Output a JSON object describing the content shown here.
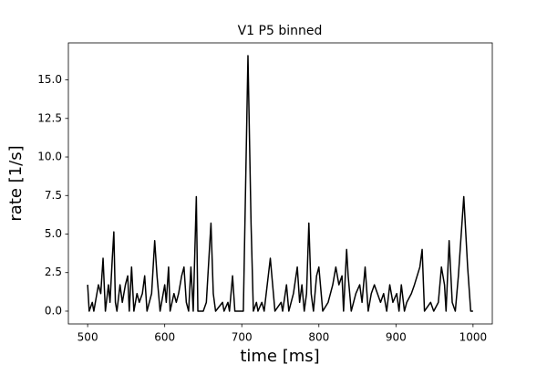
{
  "chart_data": {
    "type": "line",
    "title": "V1 P5 binned",
    "x_label": "time [ms]",
    "y_label": "rate [1/s]",
    "x": [
      500,
      502,
      506,
      508,
      514,
      517,
      520,
      523,
      527,
      529,
      532,
      534,
      536,
      538,
      542,
      545,
      549,
      552,
      554,
      557,
      560,
      564,
      567,
      571,
      574,
      577,
      583,
      587,
      590,
      594,
      600,
      602,
      605,
      607,
      612,
      615,
      618,
      622,
      625,
      628,
      631,
      634,
      637,
      641,
      643,
      650,
      654,
      660,
      663,
      666,
      675,
      677,
      682,
      684,
      688,
      691,
      702,
      708,
      712,
      715,
      719,
      721,
      726,
      729,
      737,
      740,
      743,
      751,
      753,
      758,
      761,
      767,
      772,
      775,
      778,
      781,
      784,
      787,
      790,
      793,
      797,
      800,
      805,
      812,
      818,
      822,
      826,
      830,
      832,
      836,
      838,
      842,
      848,
      853,
      856,
      860,
      864,
      868,
      872,
      876,
      880,
      884,
      888,
      892,
      896,
      901,
      904,
      907,
      911,
      914,
      920,
      924,
      931,
      934,
      937,
      945,
      949,
      955,
      959,
      963,
      965,
      969,
      973,
      977,
      981,
      988,
      993,
      997,
      1000
    ],
    "series": [
      {
        "color": "#000000",
        "values": [
          1.71,
          0,
          0.57,
          0,
          1.71,
          1.14,
          3.43,
          0,
          1.71,
          0.57,
          3.43,
          5.14,
          0.57,
          0,
          1.71,
          0.57,
          1.71,
          2.29,
          0,
          2.86,
          0,
          1.14,
          0.57,
          1.14,
          2.29,
          0,
          1.14,
          4.57,
          2.29,
          0,
          1.71,
          0.57,
          2.86,
          0,
          1.14,
          0.57,
          1.14,
          2.29,
          2.86,
          0.57,
          0,
          2.86,
          0,
          7.43,
          0,
          0,
          0.57,
          5.71,
          1.14,
          0,
          0.57,
          0,
          0.57,
          0,
          2.29,
          0,
          0,
          16.57,
          5.71,
          0,
          0.57,
          0,
          0.57,
          0,
          3.43,
          1.71,
          0,
          0.57,
          0,
          1.71,
          0,
          1.14,
          2.86,
          0.57,
          1.71,
          0,
          1.14,
          5.71,
          1.14,
          0,
          2.29,
          2.86,
          0,
          0.57,
          1.71,
          2.86,
          1.71,
          2.29,
          0,
          4.0,
          2.29,
          0,
          1.14,
          1.71,
          0.57,
          2.86,
          0,
          1.14,
          1.71,
          1.14,
          0.57,
          1.14,
          0,
          1.71,
          0.57,
          1.14,
          0,
          1.71,
          0,
          0.57,
          1.14,
          1.71,
          2.86,
          4.0,
          0,
          0.57,
          0,
          0.57,
          2.86,
          1.71,
          0,
          4.57,
          0.57,
          0,
          2.29,
          7.43,
          2.86,
          0,
          0
        ]
      }
    ],
    "xlim": [
      475,
      1025
    ],
    "ylim": [
      -0.83,
      17.4
    ],
    "xticks": [
      500,
      600,
      700,
      800,
      900,
      1000
    ],
    "yticks": [
      {
        "value": 0,
        "label": "0.0"
      },
      {
        "value": 2.5,
        "label": "2.5"
      },
      {
        "value": 5,
        "label": "5.0"
      },
      {
        "value": 7.5,
        "label": "7.5"
      },
      {
        "value": 10,
        "label": "10.0"
      },
      {
        "value": 12.5,
        "label": "12.5"
      },
      {
        "value": 15,
        "label": "15.0"
      }
    ]
  }
}
